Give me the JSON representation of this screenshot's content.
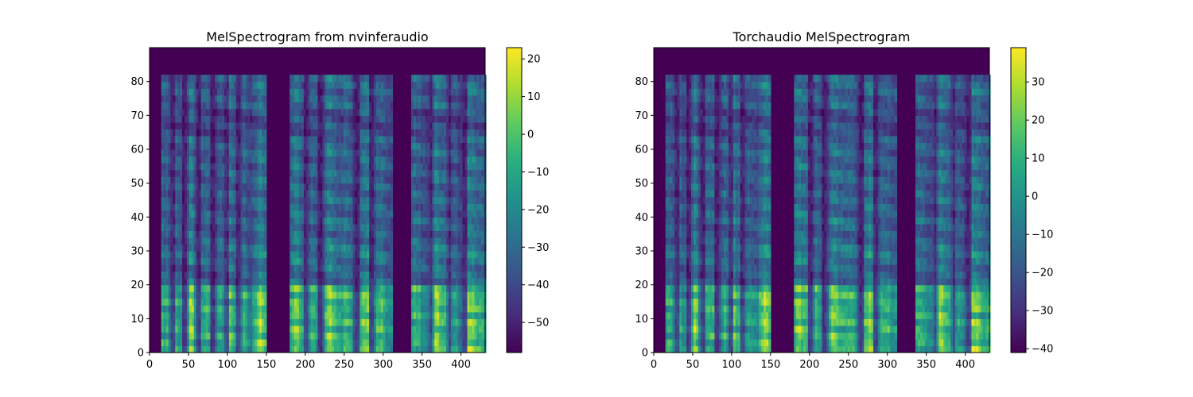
{
  "chart_data": [
    {
      "type": "heatmap",
      "title": "MelSpectrogram from nvinferaudio",
      "xlabel": "",
      "ylabel": "",
      "xlim": [
        0,
        431
      ],
      "ylim": [
        0,
        90
      ],
      "x_ticks": [
        0,
        50,
        100,
        150,
        200,
        250,
        300,
        350,
        400
      ],
      "y_ticks": [
        0,
        10,
        20,
        30,
        40,
        50,
        60,
        70,
        80
      ],
      "mel_bins": 82,
      "colormap": "viridis",
      "colorbar": {
        "min": -58,
        "max": 23,
        "ticks": [
          20,
          10,
          0,
          -10,
          -20,
          -30,
          -40,
          -50
        ]
      },
      "floor_db": -58,
      "speech_segments": [
        [
          14,
          148
        ],
        [
          178,
          312
        ],
        [
          335,
          431
        ]
      ],
      "silent_columns": [
        28,
        44,
        61,
        80,
        97,
        113,
        200,
        218,
        265,
        284,
        360,
        384,
        403
      ]
    },
    {
      "type": "heatmap",
      "title": "Torchaudio MelSpectrogram",
      "xlabel": "",
      "ylabel": "",
      "xlim": [
        0,
        431
      ],
      "ylim": [
        0,
        90
      ],
      "x_ticks": [
        0,
        50,
        100,
        150,
        200,
        250,
        300,
        350,
        400
      ],
      "y_ticks": [
        0,
        10,
        20,
        30,
        40,
        50,
        60,
        70,
        80
      ],
      "mel_bins": 81,
      "colormap": "viridis",
      "colorbar": {
        "min": -41,
        "max": 39,
        "ticks": [
          30,
          20,
          10,
          0,
          -10,
          -20,
          -30,
          -40
        ]
      },
      "floor_db": -41,
      "speech_segments": [
        [
          14,
          148
        ],
        [
          178,
          312
        ],
        [
          335,
          431
        ]
      ],
      "silent_columns": [
        28,
        44,
        61,
        80,
        97,
        113,
        200,
        218,
        265,
        284,
        360,
        384,
        403
      ]
    }
  ]
}
